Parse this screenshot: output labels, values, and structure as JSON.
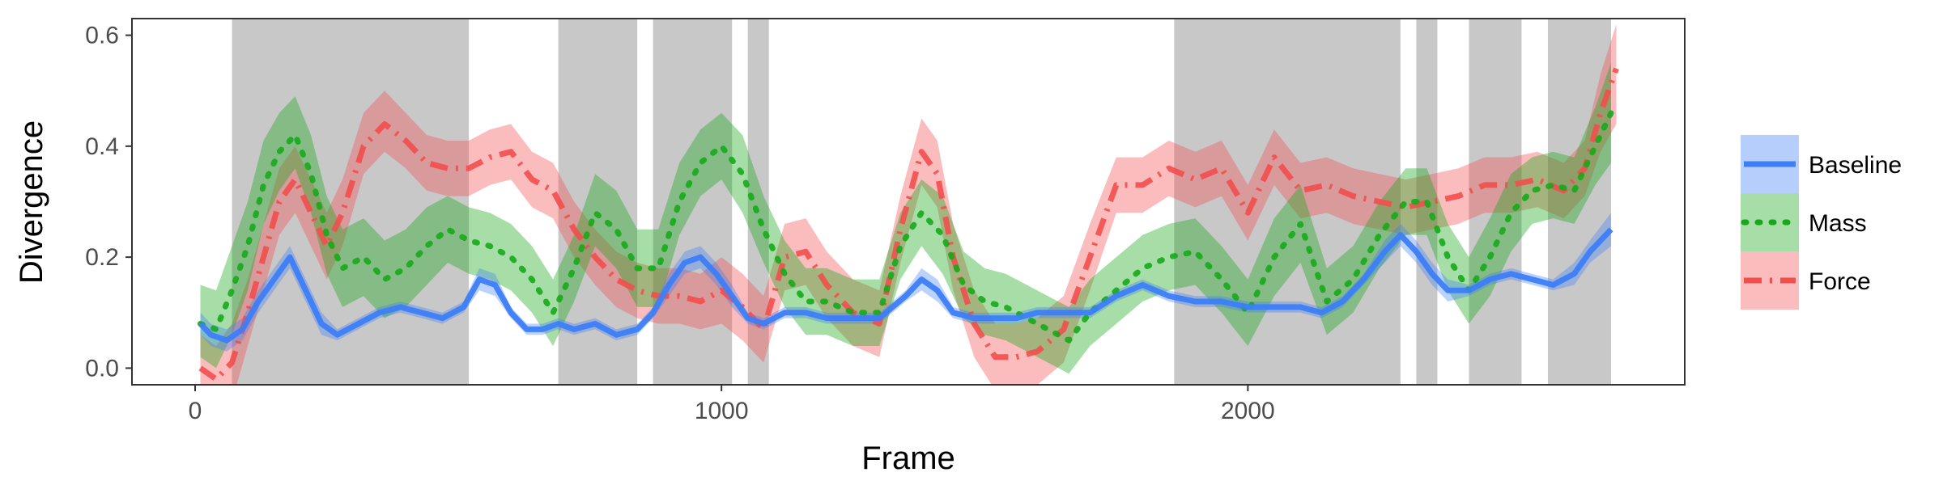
{
  "chart_data": {
    "type": "line",
    "xlabel": "Frame",
    "ylabel": "Divergence",
    "xlim": [
      -120,
      2830
    ],
    "ylim": [
      -0.03,
      0.63
    ],
    "x_ticks": [
      0,
      1000,
      2000
    ],
    "x_tick_labels": [
      "0",
      "1000",
      "2000"
    ],
    "y_ticks": [
      0.0,
      0.2,
      0.4,
      0.6
    ],
    "y_tick_labels": [
      "0.0",
      "0.2",
      "0.4",
      "0.6"
    ],
    "grid": false,
    "legend_position": "right",
    "shaded_intervals": [
      [
        70,
        520
      ],
      [
        690,
        840
      ],
      [
        870,
        1020
      ],
      [
        1050,
        1090
      ],
      [
        1860,
        2290
      ],
      [
        2320,
        2360
      ],
      [
        2420,
        2520
      ],
      [
        2570,
        2690
      ]
    ],
    "colors": {
      "Baseline": "#3d7ef7",
      "Mass": "#17a81a",
      "Force": "#f24e4e",
      "shade": "#c8c8c8"
    },
    "series": [
      {
        "name": "Baseline",
        "style": "solid",
        "x": [
          10,
          30,
          60,
          90,
          120,
          150,
          180,
          210,
          240,
          270,
          310,
          350,
          390,
          430,
          470,
          510,
          540,
          570,
          600,
          630,
          660,
          690,
          720,
          760,
          800,
          840,
          870,
          900,
          930,
          960,
          990,
          1020,
          1050,
          1080,
          1120,
          1160,
          1200,
          1250,
          1300,
          1350,
          1380,
          1410,
          1440,
          1480,
          1520,
          1560,
          1600,
          1650,
          1700,
          1750,
          1800,
          1850,
          1900,
          1950,
          2000,
          2050,
          2100,
          2140,
          2180,
          2220,
          2260,
          2290,
          2320,
          2350,
          2380,
          2420,
          2460,
          2500,
          2540,
          2580,
          2620,
          2650,
          2690
        ],
        "y": [
          0.08,
          0.06,
          0.05,
          0.07,
          0.12,
          0.16,
          0.2,
          0.14,
          0.08,
          0.06,
          0.08,
          0.1,
          0.11,
          0.1,
          0.09,
          0.11,
          0.16,
          0.15,
          0.1,
          0.07,
          0.07,
          0.08,
          0.07,
          0.08,
          0.06,
          0.07,
          0.1,
          0.15,
          0.19,
          0.2,
          0.17,
          0.13,
          0.09,
          0.08,
          0.1,
          0.1,
          0.09,
          0.09,
          0.09,
          0.13,
          0.16,
          0.14,
          0.1,
          0.09,
          0.09,
          0.09,
          0.1,
          0.1,
          0.1,
          0.13,
          0.15,
          0.13,
          0.12,
          0.12,
          0.11,
          0.11,
          0.11,
          0.1,
          0.12,
          0.16,
          0.21,
          0.24,
          0.21,
          0.17,
          0.14,
          0.14,
          0.16,
          0.17,
          0.16,
          0.15,
          0.17,
          0.21,
          0.25
        ],
        "lower": [
          0.06,
          0.04,
          0.03,
          0.05,
          0.1,
          0.14,
          0.18,
          0.12,
          0.06,
          0.05,
          0.07,
          0.09,
          0.1,
          0.09,
          0.08,
          0.1,
          0.14,
          0.13,
          0.09,
          0.06,
          0.06,
          0.07,
          0.06,
          0.07,
          0.05,
          0.06,
          0.09,
          0.13,
          0.17,
          0.18,
          0.15,
          0.11,
          0.08,
          0.07,
          0.09,
          0.09,
          0.08,
          0.08,
          0.08,
          0.12,
          0.14,
          0.12,
          0.09,
          0.08,
          0.08,
          0.08,
          0.09,
          0.09,
          0.09,
          0.12,
          0.14,
          0.12,
          0.11,
          0.11,
          0.1,
          0.1,
          0.1,
          0.09,
          0.11,
          0.15,
          0.19,
          0.22,
          0.19,
          0.15,
          0.12,
          0.13,
          0.15,
          0.16,
          0.15,
          0.14,
          0.15,
          0.19,
          0.22
        ],
        "upper": [
          0.1,
          0.08,
          0.07,
          0.09,
          0.14,
          0.18,
          0.22,
          0.16,
          0.1,
          0.07,
          0.09,
          0.11,
          0.12,
          0.11,
          0.1,
          0.12,
          0.18,
          0.17,
          0.11,
          0.08,
          0.08,
          0.09,
          0.08,
          0.09,
          0.07,
          0.08,
          0.11,
          0.17,
          0.21,
          0.22,
          0.19,
          0.15,
          0.1,
          0.09,
          0.11,
          0.11,
          0.1,
          0.1,
          0.1,
          0.14,
          0.18,
          0.16,
          0.11,
          0.1,
          0.1,
          0.1,
          0.11,
          0.11,
          0.11,
          0.14,
          0.16,
          0.14,
          0.13,
          0.13,
          0.12,
          0.12,
          0.12,
          0.11,
          0.13,
          0.17,
          0.23,
          0.26,
          0.23,
          0.19,
          0.16,
          0.15,
          0.17,
          0.18,
          0.17,
          0.16,
          0.19,
          0.23,
          0.28
        ]
      },
      {
        "name": "Mass",
        "style": "dotted",
        "x": [
          10,
          40,
          70,
          100,
          130,
          160,
          190,
          220,
          250,
          280,
          320,
          360,
          400,
          440,
          480,
          520,
          560,
          600,
          640,
          680,
          720,
          760,
          800,
          840,
          880,
          920,
          960,
          1000,
          1040,
          1080,
          1120,
          1160,
          1200,
          1250,
          1300,
          1340,
          1380,
          1420,
          1460,
          1500,
          1540,
          1580,
          1620,
          1660,
          1700,
          1750,
          1800,
          1850,
          1900,
          1950,
          2000,
          2050,
          2100,
          2150,
          2200,
          2250,
          2300,
          2340,
          2380,
          2420,
          2460,
          2500,
          2540,
          2580,
          2620,
          2660,
          2690
        ],
        "y": [
          0.08,
          0.07,
          0.14,
          0.22,
          0.33,
          0.39,
          0.42,
          0.35,
          0.24,
          0.18,
          0.2,
          0.16,
          0.18,
          0.22,
          0.25,
          0.23,
          0.22,
          0.2,
          0.16,
          0.1,
          0.18,
          0.28,
          0.25,
          0.18,
          0.18,
          0.3,
          0.37,
          0.4,
          0.35,
          0.25,
          0.17,
          0.12,
          0.12,
          0.1,
          0.1,
          0.22,
          0.28,
          0.24,
          0.15,
          0.12,
          0.11,
          0.09,
          0.07,
          0.05,
          0.1,
          0.14,
          0.18,
          0.2,
          0.21,
          0.16,
          0.1,
          0.2,
          0.26,
          0.12,
          0.16,
          0.24,
          0.3,
          0.3,
          0.2,
          0.14,
          0.2,
          0.28,
          0.32,
          0.33,
          0.32,
          0.4,
          0.46
        ],
        "lower": [
          0.02,
          0.0,
          0.06,
          0.14,
          0.26,
          0.32,
          0.36,
          0.28,
          0.17,
          0.11,
          0.13,
          0.09,
          0.11,
          0.15,
          0.19,
          0.17,
          0.16,
          0.14,
          0.1,
          0.04,
          0.12,
          0.22,
          0.18,
          0.11,
          0.11,
          0.24,
          0.31,
          0.34,
          0.28,
          0.19,
          0.11,
          0.06,
          0.06,
          0.04,
          0.04,
          0.16,
          0.22,
          0.17,
          0.09,
          0.06,
          0.05,
          0.03,
          0.01,
          -0.01,
          0.04,
          0.08,
          0.12,
          0.14,
          0.15,
          0.1,
          0.04,
          0.13,
          0.19,
          0.06,
          0.1,
          0.18,
          0.24,
          0.24,
          0.14,
          0.08,
          0.13,
          0.21,
          0.26,
          0.27,
          0.26,
          0.33,
          0.37
        ],
        "upper": [
          0.15,
          0.14,
          0.22,
          0.3,
          0.41,
          0.46,
          0.49,
          0.42,
          0.31,
          0.25,
          0.27,
          0.23,
          0.25,
          0.29,
          0.31,
          0.29,
          0.28,
          0.26,
          0.22,
          0.16,
          0.24,
          0.35,
          0.32,
          0.25,
          0.25,
          0.37,
          0.43,
          0.46,
          0.42,
          0.31,
          0.23,
          0.18,
          0.18,
          0.16,
          0.16,
          0.28,
          0.34,
          0.31,
          0.21,
          0.18,
          0.17,
          0.15,
          0.13,
          0.11,
          0.16,
          0.2,
          0.24,
          0.26,
          0.27,
          0.22,
          0.16,
          0.27,
          0.33,
          0.18,
          0.22,
          0.3,
          0.36,
          0.36,
          0.26,
          0.2,
          0.27,
          0.35,
          0.38,
          0.39,
          0.38,
          0.47,
          0.55
        ]
      },
      {
        "name": "Force",
        "style": "dashdot",
        "x": [
          10,
          40,
          70,
          100,
          130,
          160,
          190,
          220,
          250,
          280,
          320,
          360,
          400,
          440,
          480,
          520,
          560,
          600,
          640,
          680,
          720,
          760,
          800,
          840,
          880,
          920,
          960,
          1000,
          1040,
          1080,
          1120,
          1160,
          1200,
          1250,
          1300,
          1340,
          1380,
          1410,
          1440,
          1480,
          1520,
          1560,
          1600,
          1650,
          1700,
          1750,
          1800,
          1850,
          1900,
          1950,
          2000,
          2050,
          2100,
          2150,
          2200,
          2250,
          2300,
          2350,
          2400,
          2450,
          2500,
          2550,
          2600,
          2640,
          2670,
          2700
        ],
        "y": [
          0.0,
          -0.02,
          0.01,
          0.1,
          0.2,
          0.3,
          0.34,
          0.28,
          0.22,
          0.28,
          0.4,
          0.44,
          0.41,
          0.37,
          0.36,
          0.36,
          0.38,
          0.39,
          0.34,
          0.32,
          0.25,
          0.2,
          0.16,
          0.14,
          0.13,
          0.13,
          0.12,
          0.14,
          0.11,
          0.07,
          0.2,
          0.21,
          0.15,
          0.1,
          0.08,
          0.25,
          0.39,
          0.35,
          0.2,
          0.08,
          0.02,
          0.02,
          0.03,
          0.07,
          0.2,
          0.33,
          0.33,
          0.36,
          0.34,
          0.36,
          0.28,
          0.38,
          0.32,
          0.33,
          0.31,
          0.3,
          0.29,
          0.3,
          0.31,
          0.33,
          0.33,
          0.34,
          0.32,
          0.36,
          0.46,
          0.54
        ],
        "lower": [
          -0.06,
          -0.08,
          -0.06,
          0.04,
          0.14,
          0.24,
          0.28,
          0.22,
          0.16,
          0.22,
          0.35,
          0.39,
          0.36,
          0.32,
          0.31,
          0.31,
          0.33,
          0.34,
          0.29,
          0.27,
          0.2,
          0.15,
          0.11,
          0.09,
          0.08,
          0.08,
          0.07,
          0.08,
          0.05,
          0.01,
          0.14,
          0.15,
          0.09,
          0.04,
          0.02,
          0.19,
          0.33,
          0.29,
          0.14,
          0.02,
          -0.04,
          -0.04,
          -0.03,
          0.01,
          0.14,
          0.28,
          0.28,
          0.31,
          0.29,
          0.31,
          0.23,
          0.33,
          0.27,
          0.28,
          0.26,
          0.25,
          0.24,
          0.25,
          0.26,
          0.28,
          0.28,
          0.29,
          0.27,
          0.31,
          0.39,
          0.44
        ],
        "upper": [
          0.06,
          0.04,
          0.08,
          0.16,
          0.26,
          0.36,
          0.4,
          0.34,
          0.28,
          0.34,
          0.46,
          0.5,
          0.46,
          0.42,
          0.41,
          0.41,
          0.43,
          0.44,
          0.39,
          0.37,
          0.3,
          0.25,
          0.21,
          0.19,
          0.18,
          0.18,
          0.17,
          0.2,
          0.17,
          0.13,
          0.26,
          0.27,
          0.21,
          0.16,
          0.14,
          0.31,
          0.45,
          0.41,
          0.26,
          0.14,
          0.08,
          0.08,
          0.09,
          0.13,
          0.26,
          0.38,
          0.38,
          0.41,
          0.39,
          0.41,
          0.33,
          0.43,
          0.37,
          0.38,
          0.36,
          0.35,
          0.34,
          0.35,
          0.36,
          0.38,
          0.38,
          0.39,
          0.37,
          0.41,
          0.53,
          0.62
        ]
      }
    ]
  }
}
